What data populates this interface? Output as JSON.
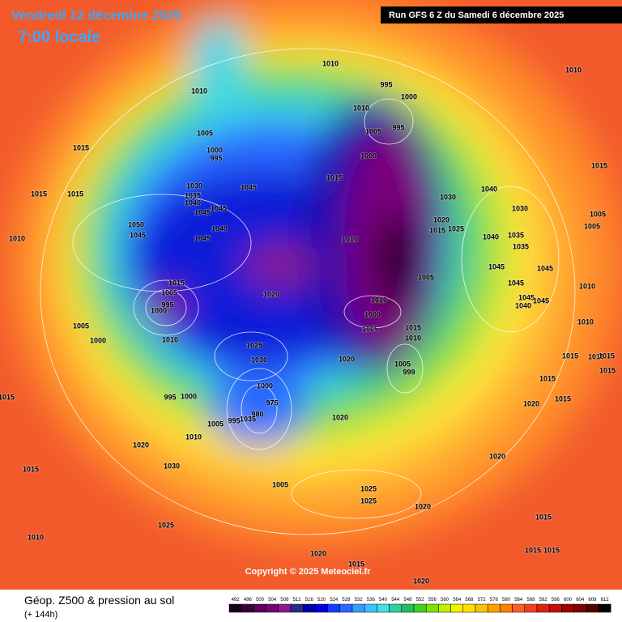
{
  "header": {
    "date": "Vendredi 12 décembre 2025",
    "time": "7:00 locale",
    "run": "Run GFS 6 Z du Samedi 6 décembre 2025"
  },
  "copyright": "Copyright © 2025 Meteociel.fr",
  "footer": {
    "title": "Géop. Z500 & pression au sol",
    "subtitle": "(+ 144h)"
  },
  "isobar_labels": [
    1010,
    1010,
    1010,
    995,
    1000,
    1010,
    1005,
    995,
    1005,
    1000,
    995,
    1015,
    1000,
    1015,
    1045,
    1030,
    1035,
    1040,
    1045,
    1045,
    1015,
    1015,
    1030,
    1040,
    1030,
    1015,
    1005,
    1005,
    1020,
    1015,
    1025,
    1040,
    1035,
    1035,
    1010,
    1050,
    1045,
    1045,
    1040,
    1010,
    1045,
    1045,
    1005,
    1015,
    1005,
    995,
    1000,
    1020,
    1045,
    1045,
    1040,
    1045,
    1010,
    1010,
    1000,
    1005,
    1015,
    1010,
    1005,
    1000,
    1010,
    1025,
    1030,
    1010,
    1020,
    1005,
    999,
    1015,
    1015,
    1015,
    1015,
    1015,
    1000,
    975,
    980,
    1035,
    995,
    1005,
    995,
    1000,
    1015,
    1020,
    1015,
    1020,
    1010,
    1020,
    1020,
    1030,
    1015,
    1005,
    1025,
    1025,
    1020,
    1015,
    1025,
    1010,
    1015,
    1015,
    1020,
    1015,
    1020
  ],
  "scale": {
    "values": [
      492,
      496,
      500,
      504,
      508,
      512,
      516,
      520,
      524,
      528,
      532,
      536,
      540,
      544,
      548,
      552,
      556,
      560,
      564,
      568,
      572,
      576,
      580,
      584,
      588,
      592,
      596,
      600,
      604,
      608,
      612
    ],
    "colors": [
      "#1a001a",
      "#3a003a",
      "#5a005a",
      "#7a007a",
      "#8a1a8a",
      "#2a2a8a",
      "#0000aa",
      "#0000dd",
      "#1a3aff",
      "#2a6aff",
      "#3a9aff",
      "#40c0ff",
      "#40e0e0",
      "#30d0a0",
      "#20c060",
      "#40d020",
      "#80e000",
      "#c0f000",
      "#f0f000",
      "#ffe000",
      "#ffc000",
      "#ffa000",
      "#ff8000",
      "#ff6020",
      "#f04020",
      "#e02010",
      "#c01010",
      "#a00000",
      "#800000",
      "#500000",
      "#000000"
    ]
  }
}
